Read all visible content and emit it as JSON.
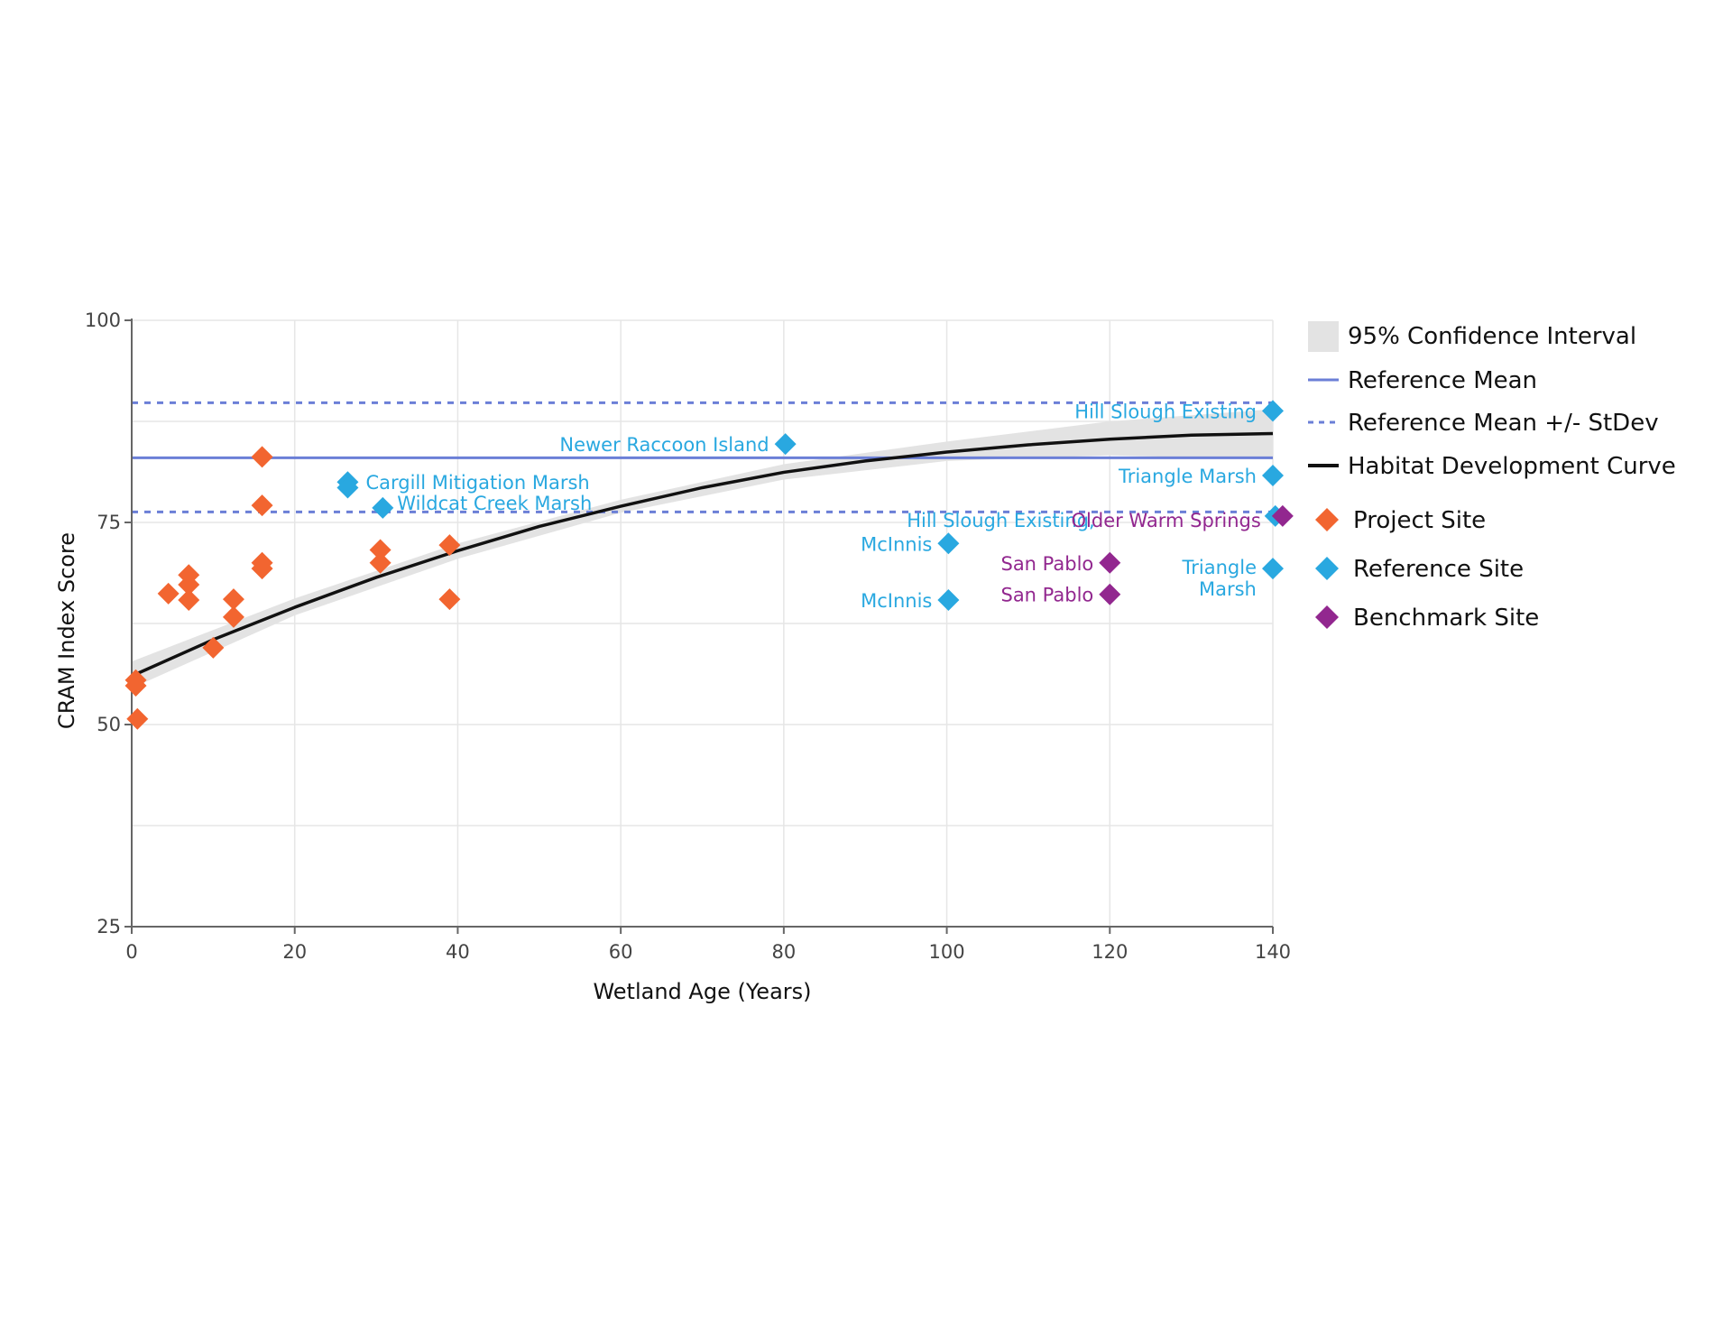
{
  "chart_data": {
    "type": "scatter",
    "title": "",
    "xlabel": "Wetland Age (Years)",
    "ylabel": "CRAM Index Score",
    "xlim": [
      0,
      140
    ],
    "ylim": [
      25,
      100
    ],
    "x_ticks": [
      0,
      20,
      40,
      60,
      80,
      100,
      120,
      140
    ],
    "y_ticks": [
      25,
      50,
      75,
      100
    ],
    "x_tick_labels": [
      "0",
      "20",
      "40",
      "60",
      "80",
      "100",
      "120",
      "140"
    ],
    "y_tick_labels": [
      "25",
      "50",
      "75",
      "100"
    ],
    "grid": true,
    "legend_position": "right",
    "colors": {
      "project": "#f26530",
      "reference": "#29a8e0",
      "benchmark": "#92278f",
      "mean_line": "#6b7fd7",
      "curve": "#111111",
      "ci_band": "#e3e3e3",
      "grid": "#e6e6e6"
    },
    "reference_mean": 83,
    "reference_stdev_band": [
      76.3,
      89.8
    ],
    "habitat_curve": {
      "x": [
        0,
        10,
        20,
        30,
        40,
        50,
        60,
        70,
        80,
        90,
        100,
        110,
        120,
        130,
        140
      ],
      "y": [
        56.0,
        60.5,
        64.5,
        68.2,
        71.5,
        74.5,
        77.0,
        79.3,
        81.2,
        82.6,
        83.7,
        84.6,
        85.3,
        85.8,
        86.0
      ]
    },
    "confidence_interval": {
      "x": [
        0,
        20,
        40,
        60,
        80,
        100,
        120,
        140
      ],
      "lower": [
        54.5,
        63.5,
        70.5,
        76.2,
        80.3,
        82.6,
        83.3,
        82.8
      ],
      "upper": [
        57.8,
        65.6,
        72.4,
        77.8,
        82.2,
        85.0,
        87.5,
        89.0
      ]
    },
    "series": [
      {
        "name": "Project Site",
        "points": [
          {
            "x": 0.5,
            "y": 55.5
          },
          {
            "x": 0.5,
            "y": 54.8
          },
          {
            "x": 0.7,
            "y": 50.7
          },
          {
            "x": 4.5,
            "y": 66.2
          },
          {
            "x": 7,
            "y": 68.5
          },
          {
            "x": 7,
            "y": 67.3
          },
          {
            "x": 7,
            "y": 65.4
          },
          {
            "x": 10,
            "y": 59.5
          },
          {
            "x": 12.5,
            "y": 65.5
          },
          {
            "x": 12.5,
            "y": 63.3
          },
          {
            "x": 16,
            "y": 83.1
          },
          {
            "x": 16,
            "y": 77.1
          },
          {
            "x": 16,
            "y": 70
          },
          {
            "x": 16,
            "y": 69.3
          },
          {
            "x": 30.5,
            "y": 71.6
          },
          {
            "x": 30.5,
            "y": 70
          },
          {
            "x": 39,
            "y": 72.2
          },
          {
            "x": 39,
            "y": 65.5
          }
        ]
      },
      {
        "name": "Reference Site",
        "points": [
          {
            "x": 26.5,
            "y": 80,
            "label": "Cargill Mitigation Marsh"
          },
          {
            "x": 26.5,
            "y": 79.3
          },
          {
            "x": 30.8,
            "y": 76.8,
            "label": "Wildcat Creek Marsh"
          },
          {
            "x": 80.2,
            "y": 84.7,
            "label": "Newer Raccoon Island"
          },
          {
            "x": 100.2,
            "y": 72.4,
            "label": "McInnis"
          },
          {
            "x": 100.2,
            "y": 65.4,
            "label": "McInnis"
          },
          {
            "x": 140,
            "y": 88.8,
            "label": "Hill Slough Existing"
          },
          {
            "x": 140,
            "y": 80.8,
            "label": "Triangle Marsh"
          },
          {
            "x": 140.3,
            "y": 75.8,
            "label": "Hill Slough Existing,"
          },
          {
            "x": 140,
            "y": 69.3,
            "label": "Triangle Marsh"
          }
        ]
      },
      {
        "name": "Benchmark Site",
        "points": [
          {
            "x": 120,
            "y": 70,
            "label": "San Pablo"
          },
          {
            "x": 120,
            "y": 66.1,
            "label": "San Pablo"
          },
          {
            "x": 141.2,
            "y": 75.8,
            "label": "Older Warm Springs"
          }
        ]
      }
    ],
    "legend": [
      {
        "label": "95% Confidence Interval",
        "kind": "band"
      },
      {
        "label": "Reference Mean",
        "kind": "solid-line"
      },
      {
        "label": "Reference Mean +/- StDev",
        "kind": "dashed-line"
      },
      {
        "label": "Habitat Development Curve",
        "kind": "curve"
      },
      {
        "label": "Project Site",
        "kind": "project-marker"
      },
      {
        "label": "Reference Site",
        "kind": "reference-marker"
      },
      {
        "label": "Benchmark Site",
        "kind": "benchmark-marker"
      }
    ]
  }
}
